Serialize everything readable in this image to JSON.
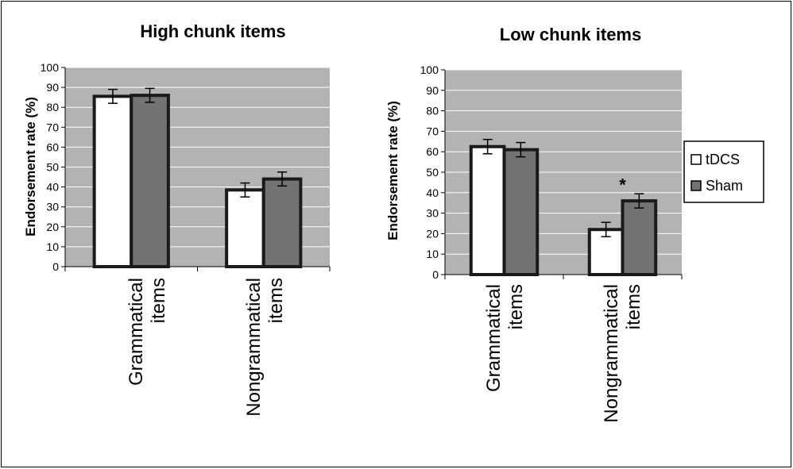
{
  "colors": {
    "plot_background": "#b3b3b3",
    "gridline": "#ffffff",
    "tdcs_fill": "#ffffff",
    "sham_fill": "#737373",
    "bar_stroke": "#1a1a1a"
  },
  "legend": {
    "items": [
      {
        "label": "tDCS",
        "color": "#ffffff"
      },
      {
        "label": "Sham",
        "color": "#737373"
      }
    ],
    "placement": "right"
  },
  "chart_data": [
    {
      "type": "bar",
      "title": "High chunk items",
      "ylabel": "Endorsement rate (%)",
      "xlabel": "",
      "ylim": [
        0,
        100
      ],
      "yticks": [
        0,
        10,
        20,
        30,
        40,
        50,
        60,
        70,
        80,
        90,
        100
      ],
      "grid": true,
      "categories": [
        [
          "Grammatical",
          "items"
        ],
        [
          "Nongrammatical",
          "items"
        ]
      ],
      "series": [
        {
          "name": "tDCS",
          "values": [
            85.5,
            38.5
          ],
          "errors": [
            3.5,
            3.5
          ]
        },
        {
          "name": "Sham",
          "values": [
            86,
            44
          ],
          "errors": [
            3.5,
            3.5
          ]
        }
      ],
      "annotations": []
    },
    {
      "type": "bar",
      "title": "Low chunk items",
      "ylabel": "Endorsement rate (%)",
      "xlabel": "",
      "ylim": [
        0,
        100
      ],
      "yticks": [
        0,
        10,
        20,
        30,
        40,
        50,
        60,
        70,
        80,
        90,
        100
      ],
      "grid": true,
      "categories": [
        [
          "Grammatical",
          "items"
        ],
        [
          "Nongrammatical",
          "items"
        ]
      ],
      "series": [
        {
          "name": "tDCS",
          "values": [
            62.5,
            22
          ],
          "errors": [
            3.5,
            3.5
          ]
        },
        {
          "name": "Sham",
          "values": [
            61,
            36
          ],
          "errors": [
            3.5,
            3.5
          ]
        }
      ],
      "annotations": [
        {
          "text": "*",
          "category_index": 1,
          "value": 47
        }
      ]
    }
  ]
}
